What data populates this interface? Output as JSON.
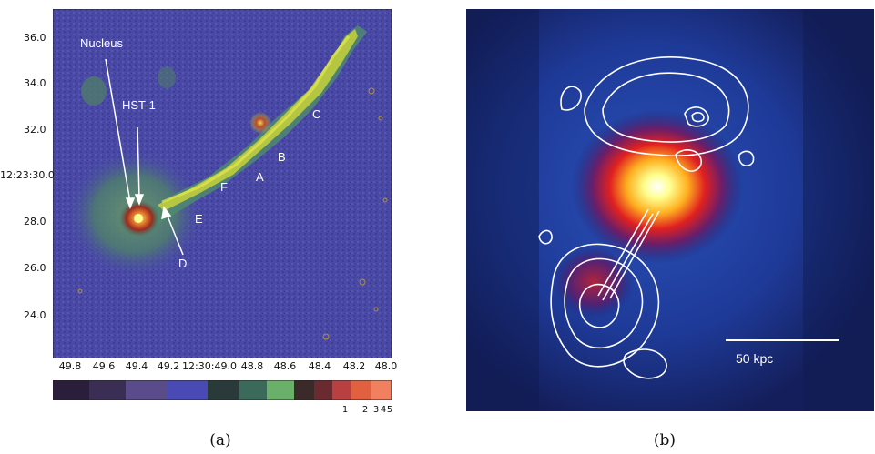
{
  "panel_a": {
    "caption": "(a)",
    "y_ticks": [
      "36.0",
      "34.0",
      "32.0",
      "12:23:30.0",
      "28.0",
      "26.0",
      "24.0"
    ],
    "x_ticks": [
      "49.8",
      "49.6",
      "49.4",
      "49.2",
      "12:30:49.0",
      "48.8",
      "48.6",
      "48.4",
      "48.2",
      "48.0"
    ],
    "labels": {
      "nucleus": "Nucleus",
      "hst1": "HST-1",
      "a": "A",
      "b": "B",
      "c": "C",
      "d": "D",
      "e": "E",
      "f": "F"
    },
    "colorbar_ticks": [
      "1",
      "2",
      "3",
      "4",
      "5"
    ],
    "colors": {
      "background": "#4a4aa8",
      "jet": "#c8d23a",
      "knot": "#c0402a"
    }
  },
  "panel_b": {
    "caption": "(b)",
    "scale_label": "50 kpc",
    "colors": {
      "background": "#1c2a78",
      "core": "#ffffe0",
      "contours": "#ffffff"
    }
  }
}
